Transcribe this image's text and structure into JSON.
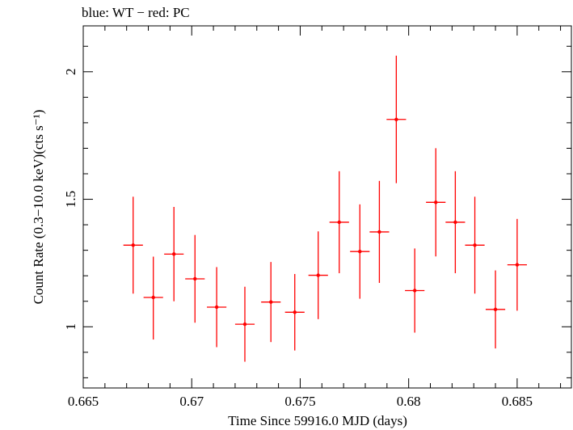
{
  "chart_data": {
    "type": "scatter",
    "title": "blue: WT − red: PC",
    "xlabel": "Time Since 59916.0 MJD (days)",
    "ylabel": "Count Rate (0.3−10.0 keV)(cts s⁻¹)",
    "xlim": [
      0.665,
      0.6875
    ],
    "ylim": [
      0.76,
      2.18
    ],
    "x_ticks": [
      0.665,
      0.67,
      0.675,
      0.68,
      0.685
    ],
    "x_tick_labels": [
      "0.665",
      "0.67",
      "0.675",
      "0.68",
      "0.685"
    ],
    "y_ticks": [
      1.0,
      1.5,
      2.0
    ],
    "y_tick_labels": [
      "1",
      "1.5",
      "2"
    ],
    "grid": false,
    "series": [
      {
        "color": "#ff0000",
        "points": [
          {
            "x": 0.6673,
            "xerr": 0.00045,
            "y": 1.32,
            "yerr_lo": 0.19,
            "yerr_hi": 0.19
          },
          {
            "x": 0.66823,
            "xerr": 0.00045,
            "y": 1.115,
            "yerr_lo": 0.165,
            "yerr_hi": 0.16
          },
          {
            "x": 0.66918,
            "xerr": 0.00045,
            "y": 1.285,
            "yerr_lo": 0.185,
            "yerr_hi": 0.185
          },
          {
            "x": 0.67015,
            "xerr": 0.00045,
            "y": 1.188,
            "yerr_lo": 0.172,
            "yerr_hi": 0.172
          },
          {
            "x": 0.67115,
            "xerr": 0.00045,
            "y": 1.077,
            "yerr_lo": 0.157,
            "yerr_hi": 0.157
          },
          {
            "x": 0.67245,
            "xerr": 0.00045,
            "y": 1.01,
            "yerr_lo": 0.147,
            "yerr_hi": 0.147
          },
          {
            "x": 0.67365,
            "xerr": 0.00045,
            "y": 1.097,
            "yerr_lo": 0.157,
            "yerr_hi": 0.157
          },
          {
            "x": 0.67475,
            "xerr": 0.00045,
            "y": 1.057,
            "yerr_lo": 0.15,
            "yerr_hi": 0.15
          },
          {
            "x": 0.67583,
            "xerr": 0.00045,
            "y": 1.202,
            "yerr_lo": 0.172,
            "yerr_hi": 0.172
          },
          {
            "x": 0.6768,
            "xerr": 0.00045,
            "y": 1.41,
            "yerr_lo": 0.2,
            "yerr_hi": 0.2
          },
          {
            "x": 0.67775,
            "xerr": 0.00045,
            "y": 1.295,
            "yerr_lo": 0.185,
            "yerr_hi": 0.185
          },
          {
            "x": 0.67865,
            "xerr": 0.00045,
            "y": 1.372,
            "yerr_lo": 0.2,
            "yerr_hi": 0.2
          },
          {
            "x": 0.67943,
            "xerr": 0.00045,
            "y": 1.813,
            "yerr_lo": 0.25,
            "yerr_hi": 0.25
          },
          {
            "x": 0.68028,
            "xerr": 0.00045,
            "y": 1.142,
            "yerr_lo": 0.165,
            "yerr_hi": 0.165
          },
          {
            "x": 0.68125,
            "xerr": 0.00045,
            "y": 1.488,
            "yerr_lo": 0.212,
            "yerr_hi": 0.212
          },
          {
            "x": 0.68215,
            "xerr": 0.00045,
            "y": 1.41,
            "yerr_lo": 0.2,
            "yerr_hi": 0.2
          },
          {
            "x": 0.68305,
            "xerr": 0.00045,
            "y": 1.32,
            "yerr_lo": 0.19,
            "yerr_hi": 0.19
          },
          {
            "x": 0.684,
            "xerr": 0.00045,
            "y": 1.068,
            "yerr_lo": 0.153,
            "yerr_hi": 0.153
          },
          {
            "x": 0.685,
            "xerr": 0.00045,
            "y": 1.243,
            "yerr_lo": 0.18,
            "yerr_hi": 0.18
          }
        ]
      }
    ]
  }
}
